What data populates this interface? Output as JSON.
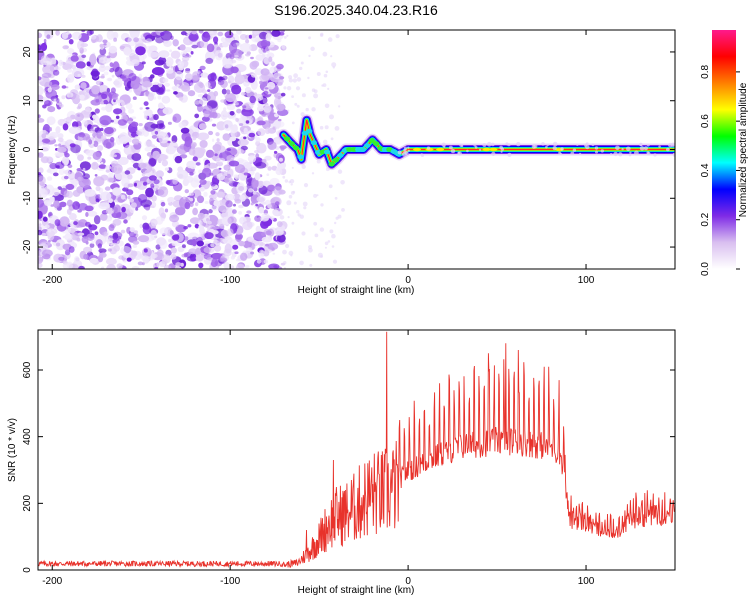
{
  "title": "S196.2025.340.04.23.R16",
  "chart_data": [
    {
      "type": "heatmap",
      "title": "S196.2025.340.04.23.R16",
      "xlabel": "Height of straight line (km)",
      "ylabel": "Frequency (Hz)",
      "xlim": [
        -208,
        150
      ],
      "ylim": [
        -24.5,
        24.5
      ],
      "xticks": [
        -200,
        -100,
        0,
        100
      ],
      "xtick_labels": [
        "-200",
        "-100",
        "0",
        "100"
      ],
      "yticks": [
        20,
        10,
        0,
        -10,
        -20
      ],
      "ytick_labels": [
        "20",
        "10",
        "0",
        "-10",
        "-20"
      ],
      "noise_region_x": [
        -208,
        -70
      ],
      "ridge": {
        "description": "strong spectral line near 0 Hz",
        "x": [
          -70,
          -65,
          -62,
          -60,
          -57,
          -55,
          -50,
          -46,
          -43,
          -40,
          -35,
          -30,
          -25,
          -20,
          -15,
          -10,
          -5,
          0,
          50,
          100,
          150
        ],
        "freq": [
          3,
          1,
          0,
          -2,
          6,
          3,
          -1,
          0,
          -3,
          -2,
          0,
          0,
          0,
          2,
          0,
          0,
          -1,
          0,
          0,
          0,
          0
        ]
      },
      "colorbar": {
        "label": "Normalized spectral amplitude",
        "range": [
          0.0,
          0.97
        ],
        "ticks": [
          0.0,
          0.2,
          0.4,
          0.6,
          0.8
        ],
        "tick_labels": [
          "0.0",
          "0.2",
          "0.4",
          "0.6",
          "0.8"
        ],
        "colormap": [
          "#ffffff",
          "#d9bff0",
          "#7f2be6",
          "#0000ff",
          "#00ffff",
          "#00ff00",
          "#ffff00",
          "#ff7f00",
          "#ff0000",
          "#ff1a8c"
        ]
      }
    },
    {
      "type": "line",
      "xlabel": "Height of straight line (km)",
      "ylabel": "SNR (10 * v/v)",
      "xlim": [
        -208,
        150
      ],
      "ylim": [
        0,
        720
      ],
      "xticks": [
        -200,
        -100,
        0,
        100
      ],
      "xtick_labels": [
        "-200",
        "-100",
        "0",
        "100"
      ],
      "yticks": [
        0,
        200,
        400,
        600
      ],
      "ytick_labels": [
        "0",
        "200",
        "400",
        "600"
      ],
      "color": "#e8322b",
      "envelope": {
        "x": [
          -208,
          -70,
          -62,
          -55,
          -50,
          -45,
          -40,
          -35,
          -30,
          -25,
          -20,
          -15,
          -10,
          -5,
          0,
          10,
          20,
          30,
          40,
          50,
          60,
          70,
          80,
          86,
          88,
          90,
          95,
          100,
          110,
          120,
          125,
          130,
          140,
          150
        ],
        "y": [
          18,
          18,
          25,
          70,
          110,
          160,
          190,
          200,
          220,
          250,
          270,
          270,
          280,
          300,
          330,
          360,
          390,
          410,
          420,
          430,
          430,
          420,
          410,
          380,
          300,
          150,
          150,
          140,
          110,
          120,
          150,
          160,
          165,
          170
        ]
      },
      "spikes": [
        {
          "x": -57,
          "y": 120
        },
        {
          "x": -42,
          "y": 330
        },
        {
          "x": -32,
          "y": 270
        },
        {
          "x": -12,
          "y": 715
        },
        {
          "x": 55,
          "y": 680
        },
        {
          "x": 62,
          "y": 660
        },
        {
          "x": 45,
          "y": 650
        }
      ]
    }
  ]
}
